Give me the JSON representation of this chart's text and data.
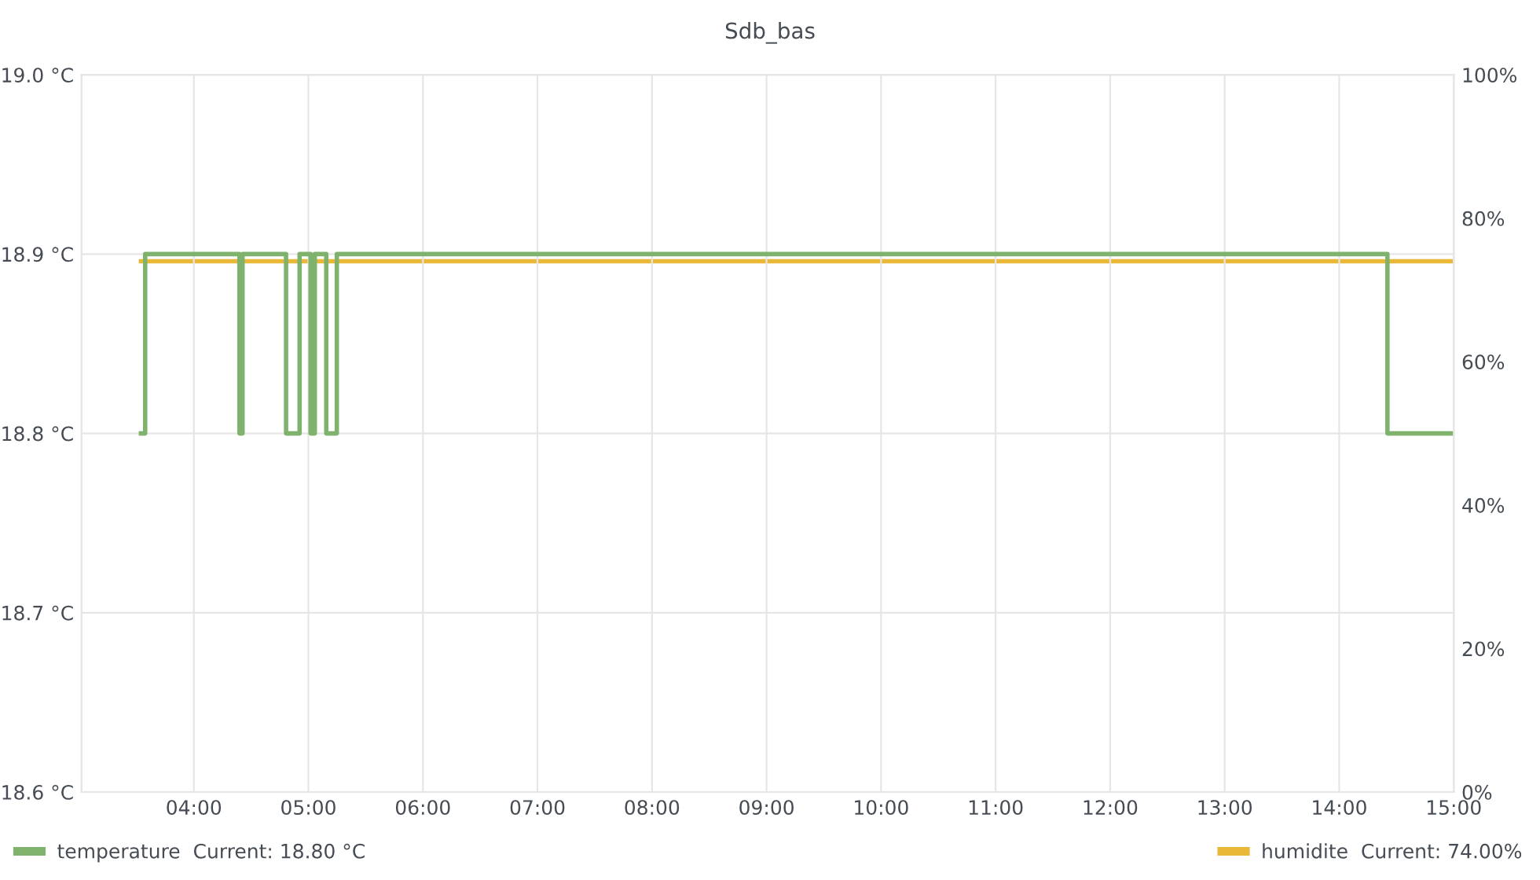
{
  "chart_data": {
    "type": "step",
    "title": "Sdb_bas",
    "xlim": [
      3.02,
      15.0
    ],
    "xticks": [
      {
        "value": 4,
        "label": "04:00"
      },
      {
        "value": 5,
        "label": "05:00"
      },
      {
        "value": 6,
        "label": "06:00"
      },
      {
        "value": 7,
        "label": "07:00"
      },
      {
        "value": 8,
        "label": "08:00"
      },
      {
        "value": 9,
        "label": "09:00"
      },
      {
        "value": 10,
        "label": "10:00"
      },
      {
        "value": 11,
        "label": "11:00"
      },
      {
        "value": 12,
        "label": "12:00"
      },
      {
        "value": 13,
        "label": "13:00"
      },
      {
        "value": 14,
        "label": "14:00"
      },
      {
        "value": 15,
        "label": "15:00"
      }
    ],
    "ylim": [
      18.6,
      19.0
    ],
    "yticks": [
      {
        "value": 18.6,
        "label": "18.6 °C"
      },
      {
        "value": 18.7,
        "label": "18.7 °C"
      },
      {
        "value": 18.8,
        "label": "18.8 °C"
      },
      {
        "value": 18.9,
        "label": "18.9 °C"
      },
      {
        "value": 19.0,
        "label": "19.0 °C"
      }
    ],
    "y2lim": [
      0,
      100
    ],
    "y2ticks": [
      {
        "value": 0,
        "label": "0%"
      },
      {
        "value": 20,
        "label": "20%"
      },
      {
        "value": 40,
        "label": "40%"
      },
      {
        "value": 60,
        "label": "60%"
      },
      {
        "value": 80,
        "label": "80%"
      },
      {
        "value": 100,
        "label": "100%"
      }
    ],
    "grid": true,
    "legend": "bottom",
    "line_style": "solid",
    "marker": "none",
    "series": [
      {
        "name": "temperature  Current: 18.80 °C",
        "color": "#7eb26d",
        "x": [
          3.538,
          3.575,
          4.398,
          4.425,
          4.805,
          4.923,
          5.019,
          5.056,
          5.156,
          5.248,
          14.421,
          15.0
        ],
        "values": [
          18.8,
          18.9,
          18.8,
          18.9,
          18.8,
          18.9,
          18.8,
          18.9,
          18.8,
          18.9,
          18.8,
          18.8
        ]
      },
      {
        "name": "humidite  Current: 74.00%",
        "color": "#eab839",
        "axis": "y2",
        "x": [
          3.538,
          15.0
        ],
        "values": [
          74,
          74
        ]
      }
    ]
  }
}
